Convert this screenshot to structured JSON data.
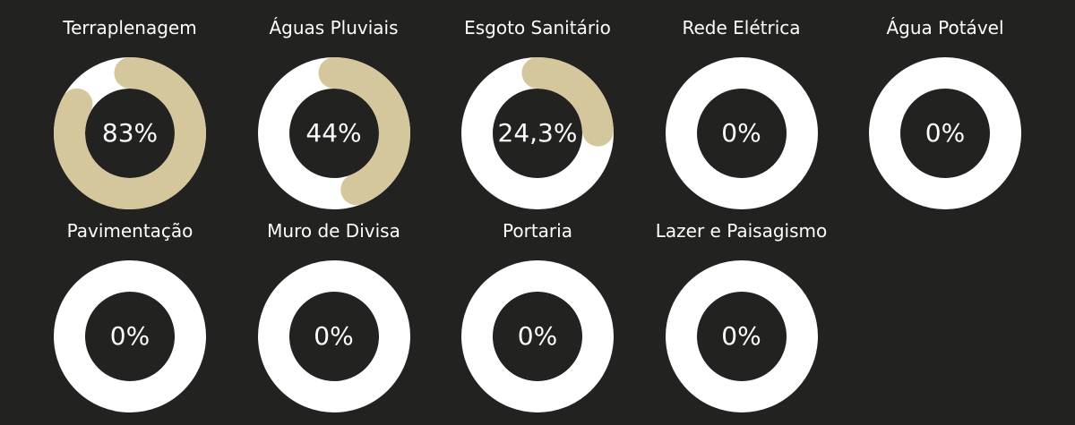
{
  "colors": {
    "background": "#222220",
    "track": "#ffffff",
    "progress": "#d3c79b",
    "text": "#ffffff"
  },
  "chart_data": {
    "type": "pie",
    "variant": "donut-progress",
    "gauges": [
      {
        "label": "Terraplenagem",
        "value": 83,
        "display": "83%"
      },
      {
        "label": "Águas Pluviais",
        "value": 44,
        "display": "44%"
      },
      {
        "label": "Esgoto Sanitário",
        "value": 24.3,
        "display": "24,3%"
      },
      {
        "label": "Rede Elétrica",
        "value": 0,
        "display": "0%"
      },
      {
        "label": "Água Potável",
        "value": 0,
        "display": "0%"
      },
      {
        "label": "Pavimentação",
        "value": 0,
        "display": "0%"
      },
      {
        "label": "Muro de Divisa",
        "value": 0,
        "display": "0%"
      },
      {
        "label": "Portaria",
        "value": 0,
        "display": "0%"
      },
      {
        "label": "Lazer e Paisagismo",
        "value": 0,
        "display": "0%"
      }
    ]
  }
}
